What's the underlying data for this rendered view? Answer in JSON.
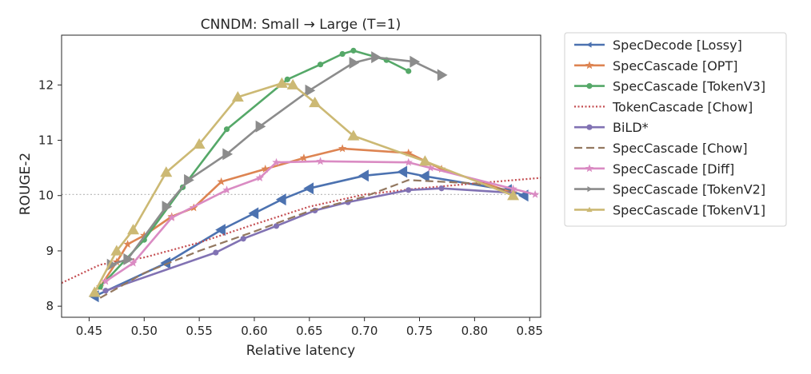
{
  "chart_data": {
    "type": "line",
    "title": "CNNDM:  Small → Large   (T=1)",
    "xlabel": "Relative latency",
    "ylabel": "ROUGE-2",
    "xlim": [
      0.425,
      0.86
    ],
    "ylim": [
      7.8,
      12.9
    ],
    "xticks": [
      0.45,
      0.5,
      0.55,
      0.6,
      0.65,
      0.7,
      0.75,
      0.8,
      0.85
    ],
    "xtick_labels": [
      "0.45",
      "0.50",
      "0.55",
      "0.60",
      "0.65",
      "0.70",
      "0.75",
      "0.80",
      "0.85"
    ],
    "yticks": [
      8,
      9,
      10,
      11,
      12
    ],
    "ytick_labels": [
      "8",
      "9",
      "10",
      "11",
      "12"
    ],
    "reference_line_y": 10.02,
    "legend_position": "outside-right",
    "series": [
      {
        "name": "SpecDecode [Lossy]",
        "color": "#4c72b0",
        "marker": "triangle-left",
        "dash": "",
        "points": [
          [
            0.455,
            8.18
          ],
          [
            0.52,
            8.78
          ],
          [
            0.57,
            9.38
          ],
          [
            0.6,
            9.68
          ],
          [
            0.625,
            9.93
          ],
          [
            0.65,
            10.13
          ],
          [
            0.7,
            10.36
          ],
          [
            0.735,
            10.43
          ],
          [
            0.755,
            10.35
          ],
          [
            0.83,
            10.1
          ],
          [
            0.845,
            10.0
          ]
        ]
      },
      {
        "name": "SpecCascade [OPT]",
        "color": "#dd8452",
        "marker": "star",
        "dash": "",
        "points": [
          [
            0.46,
            8.35
          ],
          [
            0.475,
            8.8
          ],
          [
            0.485,
            9.12
          ],
          [
            0.5,
            9.28
          ],
          [
            0.525,
            9.62
          ],
          [
            0.545,
            9.78
          ],
          [
            0.57,
            10.25
          ],
          [
            0.61,
            10.48
          ],
          [
            0.645,
            10.68
          ],
          [
            0.68,
            10.85
          ],
          [
            0.74,
            10.77
          ],
          [
            0.77,
            10.48
          ],
          [
            0.835,
            10.05
          ]
        ]
      },
      {
        "name": "SpecCascade [TokenV3]",
        "color": "#55a868",
        "marker": "circle",
        "dash": "",
        "points": [
          [
            0.46,
            8.35
          ],
          [
            0.5,
            9.2
          ],
          [
            0.535,
            10.15
          ],
          [
            0.575,
            11.2
          ],
          [
            0.63,
            12.1
          ],
          [
            0.66,
            12.37
          ],
          [
            0.68,
            12.56
          ],
          [
            0.69,
            12.62
          ],
          [
            0.72,
            12.45
          ],
          [
            0.74,
            12.25
          ]
        ]
      },
      {
        "name": "TokenCascade [Chow]",
        "color": "#c44e52",
        "marker": "none",
        "dash": "2,2.5",
        "points": [
          [
            0.425,
            8.42
          ],
          [
            0.46,
            8.75
          ],
          [
            0.5,
            8.88
          ],
          [
            0.55,
            9.15
          ],
          [
            0.6,
            9.48
          ],
          [
            0.65,
            9.8
          ],
          [
            0.7,
            10.02
          ],
          [
            0.75,
            10.13
          ],
          [
            0.8,
            10.22
          ],
          [
            0.86,
            10.32
          ]
        ]
      },
      {
        "name": "BiLD*",
        "color": "#8172b3",
        "marker": "circle",
        "dash": "",
        "points": [
          [
            0.465,
            8.28
          ],
          [
            0.565,
            8.97
          ],
          [
            0.59,
            9.22
          ],
          [
            0.62,
            9.45
          ],
          [
            0.655,
            9.73
          ],
          [
            0.685,
            9.88
          ],
          [
            0.74,
            10.1
          ],
          [
            0.77,
            10.13
          ],
          [
            0.835,
            10.05
          ]
        ]
      },
      {
        "name": "SpecCascade [Chow]",
        "color": "#937860",
        "marker": "none",
        "dash": "10,5",
        "points": [
          [
            0.46,
            8.15
          ],
          [
            0.5,
            8.6
          ],
          [
            0.55,
            9.0
          ],
          [
            0.6,
            9.35
          ],
          [
            0.65,
            9.72
          ],
          [
            0.7,
            9.98
          ],
          [
            0.74,
            10.28
          ],
          [
            0.8,
            10.22
          ],
          [
            0.84,
            10.05
          ]
        ]
      },
      {
        "name": "SpecCascade [Diff]",
        "color": "#da8bc3",
        "marker": "star",
        "dash": "",
        "points": [
          [
            0.465,
            8.45
          ],
          [
            0.49,
            8.78
          ],
          [
            0.525,
            9.6
          ],
          [
            0.575,
            10.1
          ],
          [
            0.605,
            10.32
          ],
          [
            0.62,
            10.6
          ],
          [
            0.66,
            10.62
          ],
          [
            0.74,
            10.6
          ],
          [
            0.76,
            10.5
          ],
          [
            0.835,
            10.12
          ],
          [
            0.855,
            10.02
          ]
        ]
      },
      {
        "name": "SpecCascade [TokenV2]",
        "color": "#8c8c8c",
        "marker": "triangle-right",
        "dash": "",
        "points": [
          [
            0.47,
            8.75
          ],
          [
            0.485,
            8.85
          ],
          [
            0.52,
            9.8
          ],
          [
            0.54,
            10.28
          ],
          [
            0.575,
            10.75
          ],
          [
            0.605,
            11.25
          ],
          [
            0.65,
            11.9
          ],
          [
            0.69,
            12.4
          ],
          [
            0.71,
            12.5
          ],
          [
            0.745,
            12.42
          ],
          [
            0.77,
            12.18
          ]
        ]
      },
      {
        "name": "SpecCascade [TokenV1]",
        "color": "#ccb974",
        "marker": "triangle-up",
        "dash": "",
        "points": [
          [
            0.455,
            8.25
          ],
          [
            0.475,
            9.0
          ],
          [
            0.49,
            9.38
          ],
          [
            0.52,
            10.42
          ],
          [
            0.55,
            10.93
          ],
          [
            0.585,
            11.78
          ],
          [
            0.625,
            12.03
          ],
          [
            0.635,
            12.0
          ],
          [
            0.655,
            11.68
          ],
          [
            0.69,
            11.08
          ],
          [
            0.755,
            10.62
          ],
          [
            0.835,
            10.0
          ]
        ]
      }
    ]
  }
}
